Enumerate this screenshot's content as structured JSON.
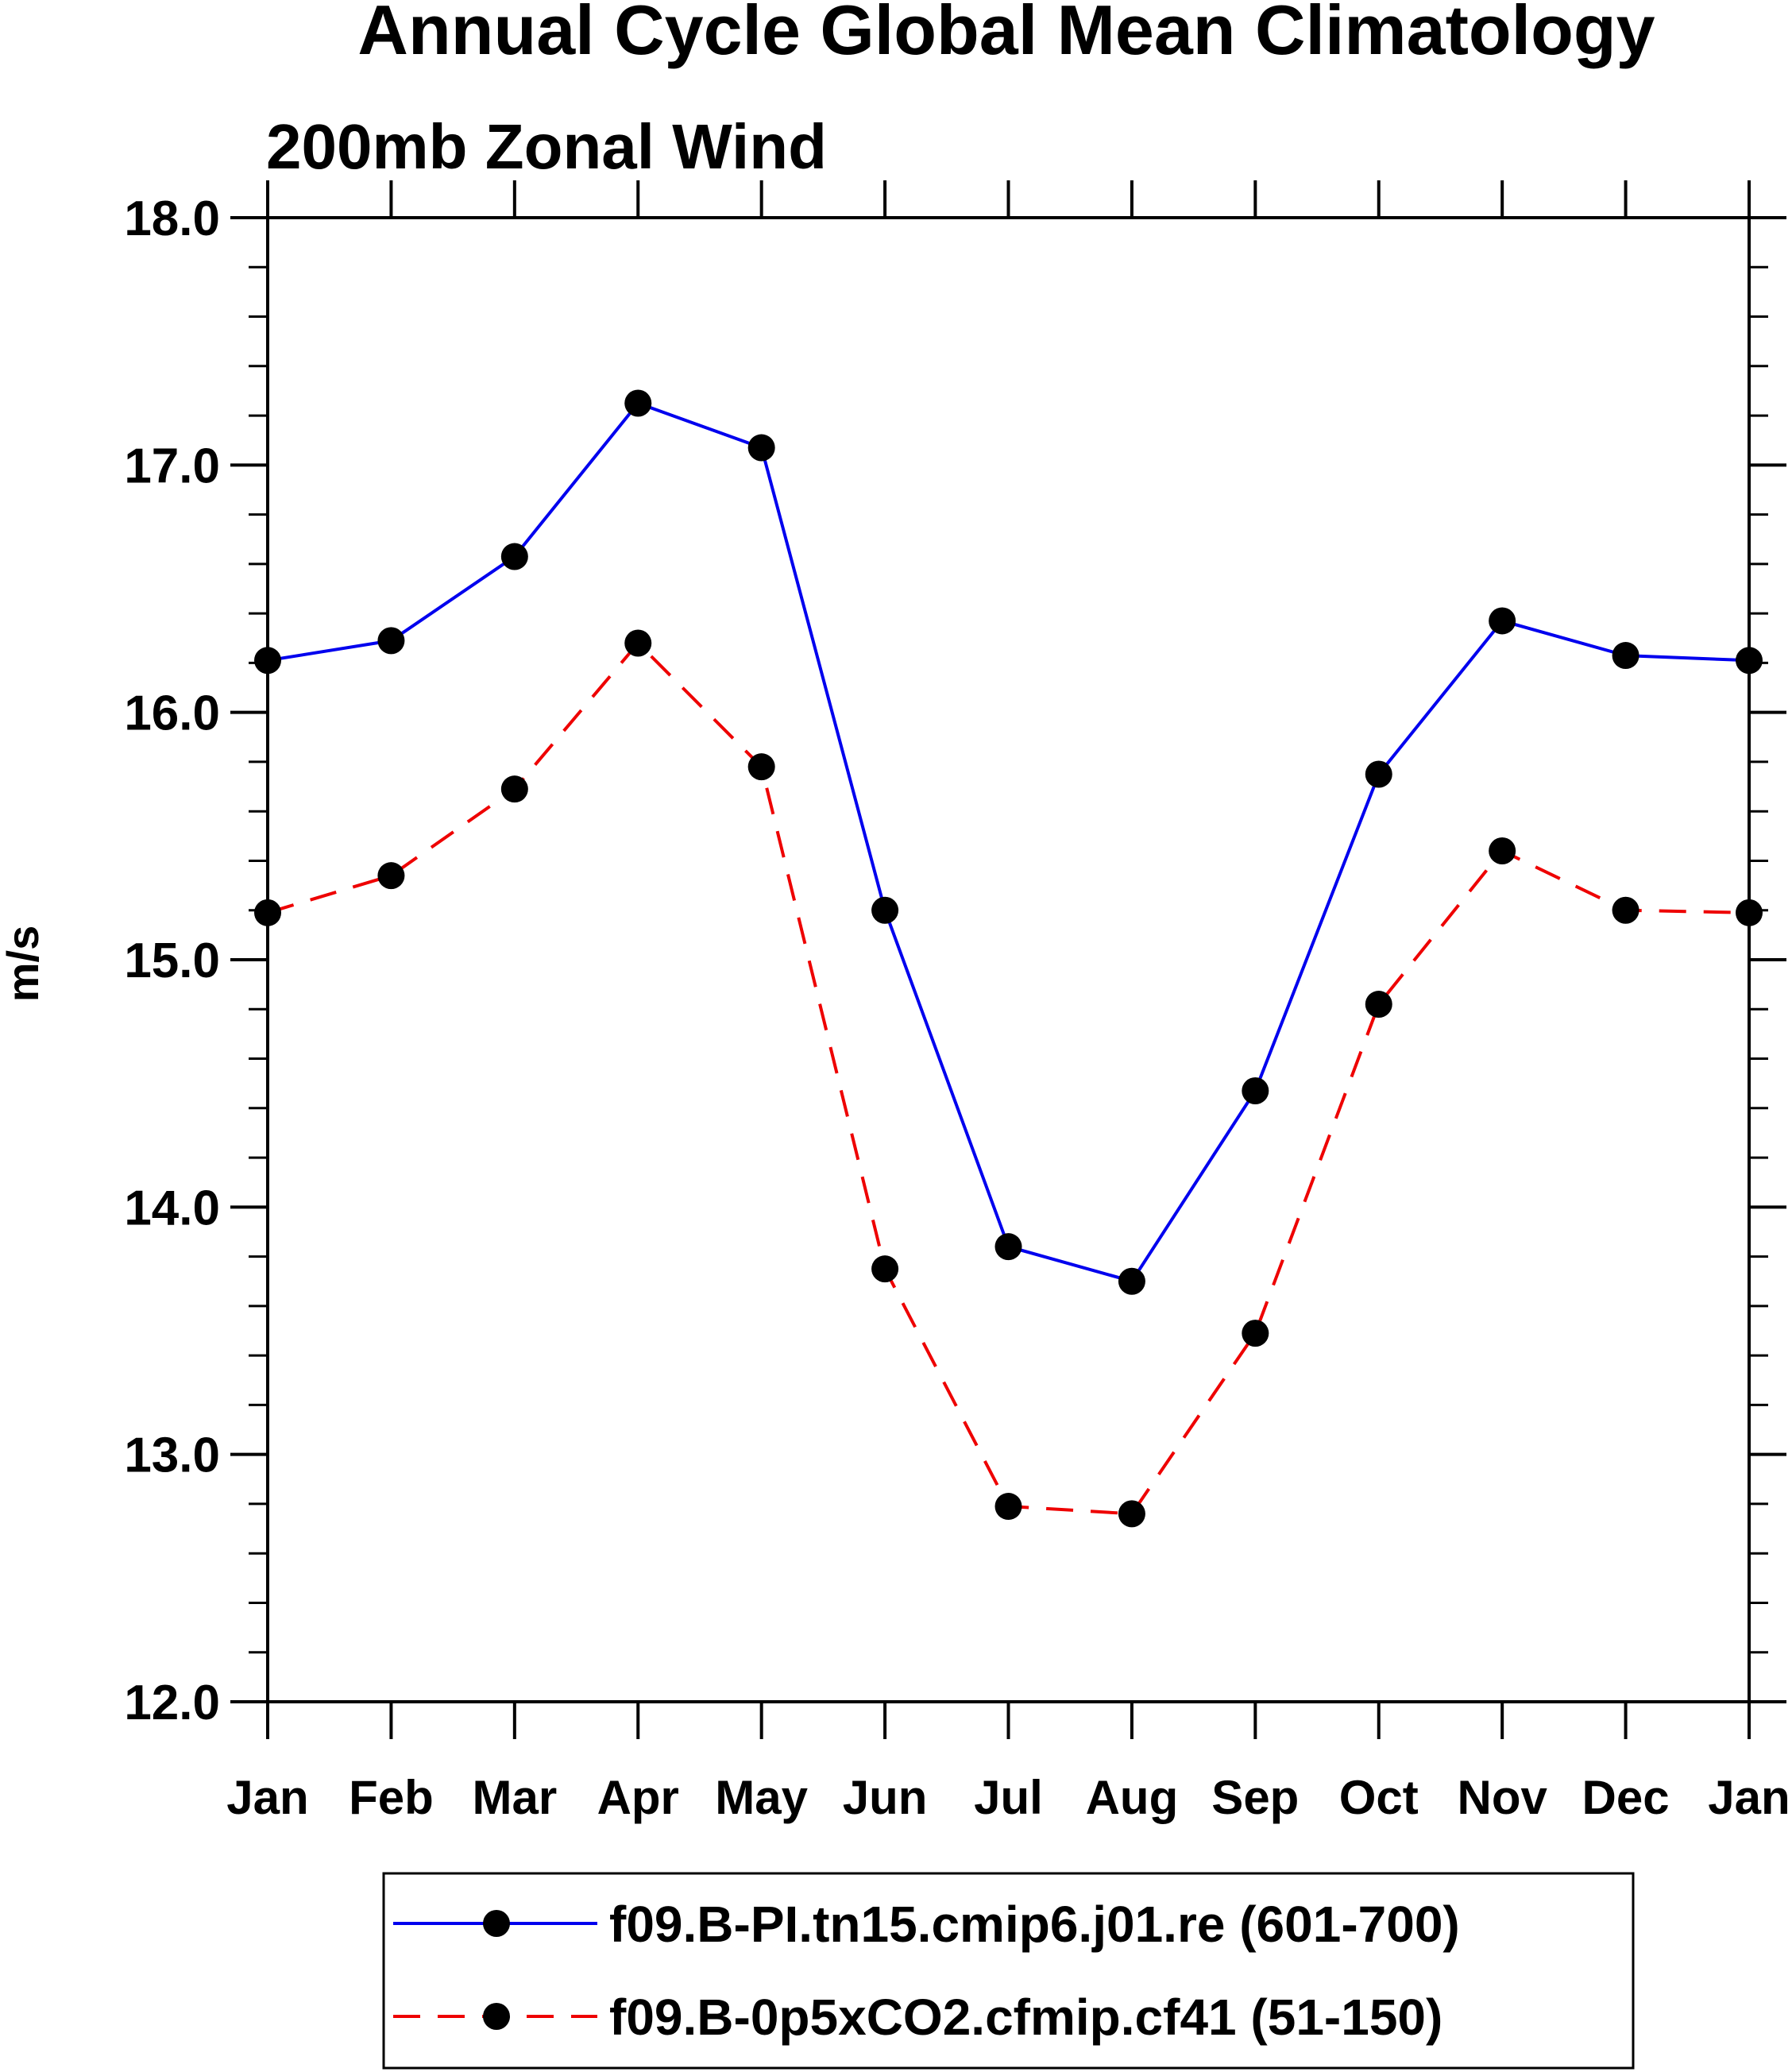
{
  "chart_data": {
    "type": "line",
    "title": "Annual Cycle Global Mean Climatology",
    "subtitle": "200mb Zonal Wind",
    "xlabel": "",
    "ylabel": "m/s",
    "ylim": [
      12.0,
      18.0
    ],
    "yticks": [
      "12.0",
      "13.0",
      "14.0",
      "15.0",
      "16.0",
      "17.0",
      "18.0"
    ],
    "categories": [
      "Jan",
      "Feb",
      "Mar",
      "Apr",
      "May",
      "Jun",
      "Jul",
      "Aug",
      "Sep",
      "Oct",
      "Nov",
      "Dec",
      "Jan"
    ],
    "grid": false,
    "legend_position": "bottom",
    "series": [
      {
        "name": "f09.B-PI.tn15.cmip6.j01.re (601-700)",
        "color": "#0000ee",
        "dash": "solid",
        "marker": "filled-circle",
        "values": [
          16.21,
          16.29,
          16.63,
          17.25,
          17.07,
          15.2,
          13.84,
          13.7,
          14.47,
          15.75,
          16.37,
          16.23,
          16.21
        ]
      },
      {
        "name": "f09.B-0p5xCO2.cfmip.cf41 (51-150)",
        "color": "#ee0000",
        "dash": "dashed",
        "marker": "filled-circle",
        "values": [
          15.19,
          15.34,
          15.69,
          16.28,
          15.78,
          13.75,
          12.79,
          12.76,
          13.49,
          14.82,
          15.44,
          15.2,
          15.19
        ]
      }
    ]
  }
}
